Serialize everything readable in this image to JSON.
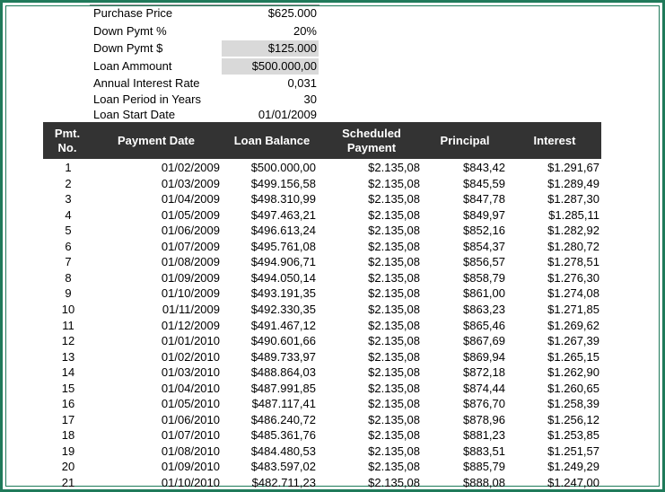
{
  "summary": [
    {
      "label": "Purchase Price",
      "value": "$625.000",
      "shaded": false
    },
    {
      "label": "Down Pymt %",
      "value": "20%",
      "shaded": false
    },
    {
      "label": "Down Pymt $",
      "value": "$125.000",
      "shaded": true
    },
    {
      "label": "Loan Ammount",
      "value": "$500.000,00",
      "shaded": true
    },
    {
      "label": "Annual Interest Rate",
      "value": "0,031",
      "shaded": false
    },
    {
      "label": "Loan Period in Years",
      "value": "30",
      "shaded": false
    },
    {
      "label": "Loan Start Date",
      "value": "01/01/2009",
      "shaded": false
    }
  ],
  "schedule": {
    "headers": [
      "Pmt.\nNo.",
      "Payment Date",
      "Loan Balance",
      "Scheduled\nPayment",
      "Principal",
      "Interest"
    ],
    "rows": [
      [
        "1",
        "01/02/2009",
        "$500.000,00",
        "$2.135,08",
        "$843,42",
        "$1.291,67"
      ],
      [
        "2",
        "01/03/2009",
        "$499.156,58",
        "$2.135,08",
        "$845,59",
        "$1.289,49"
      ],
      [
        "3",
        "01/04/2009",
        "$498.310,99",
        "$2.135,08",
        "$847,78",
        "$1.287,30"
      ],
      [
        "4",
        "01/05/2009",
        "$497.463,21",
        "$2.135,08",
        "$849,97",
        "$1.285,11"
      ],
      [
        "5",
        "01/06/2009",
        "$496.613,24",
        "$2.135,08",
        "$852,16",
        "$1.282,92"
      ],
      [
        "6",
        "01/07/2009",
        "$495.761,08",
        "$2.135,08",
        "$854,37",
        "$1.280,72"
      ],
      [
        "7",
        "01/08/2009",
        "$494.906,71",
        "$2.135,08",
        "$856,57",
        "$1.278,51"
      ],
      [
        "8",
        "01/09/2009",
        "$494.050,14",
        "$2.135,08",
        "$858,79",
        "$1.276,30"
      ],
      [
        "9",
        "01/10/2009",
        "$493.191,35",
        "$2.135,08",
        "$861,00",
        "$1.274,08"
      ],
      [
        "10",
        "01/11/2009",
        "$492.330,35",
        "$2.135,08",
        "$863,23",
        "$1.271,85"
      ],
      [
        "11",
        "01/12/2009",
        "$491.467,12",
        "$2.135,08",
        "$865,46",
        "$1.269,62"
      ],
      [
        "12",
        "01/01/2010",
        "$490.601,66",
        "$2.135,08",
        "$867,69",
        "$1.267,39"
      ],
      [
        "13",
        "01/02/2010",
        "$489.733,97",
        "$2.135,08",
        "$869,94",
        "$1.265,15"
      ],
      [
        "14",
        "01/03/2010",
        "$488.864,03",
        "$2.135,08",
        "$872,18",
        "$1.262,90"
      ],
      [
        "15",
        "01/04/2010",
        "$487.991,85",
        "$2.135,08",
        "$874,44",
        "$1.260,65"
      ],
      [
        "16",
        "01/05/2010",
        "$487.117,41",
        "$2.135,08",
        "$876,70",
        "$1.258,39"
      ],
      [
        "17",
        "01/06/2010",
        "$486.240,72",
        "$2.135,08",
        "$878,96",
        "$1.256,12"
      ],
      [
        "18",
        "01/07/2010",
        "$485.361,76",
        "$2.135,08",
        "$881,23",
        "$1.253,85"
      ],
      [
        "19",
        "01/08/2010",
        "$484.480,53",
        "$2.135,08",
        "$883,51",
        "$1.251,57"
      ],
      [
        "20",
        "01/09/2010",
        "$483.597,02",
        "$2.135,08",
        "$885,79",
        "$1.249,29"
      ],
      [
        "21",
        "01/10/2010",
        "$482.711,23",
        "$2.135,08",
        "$888,08",
        "$1.247,00"
      ]
    ]
  }
}
